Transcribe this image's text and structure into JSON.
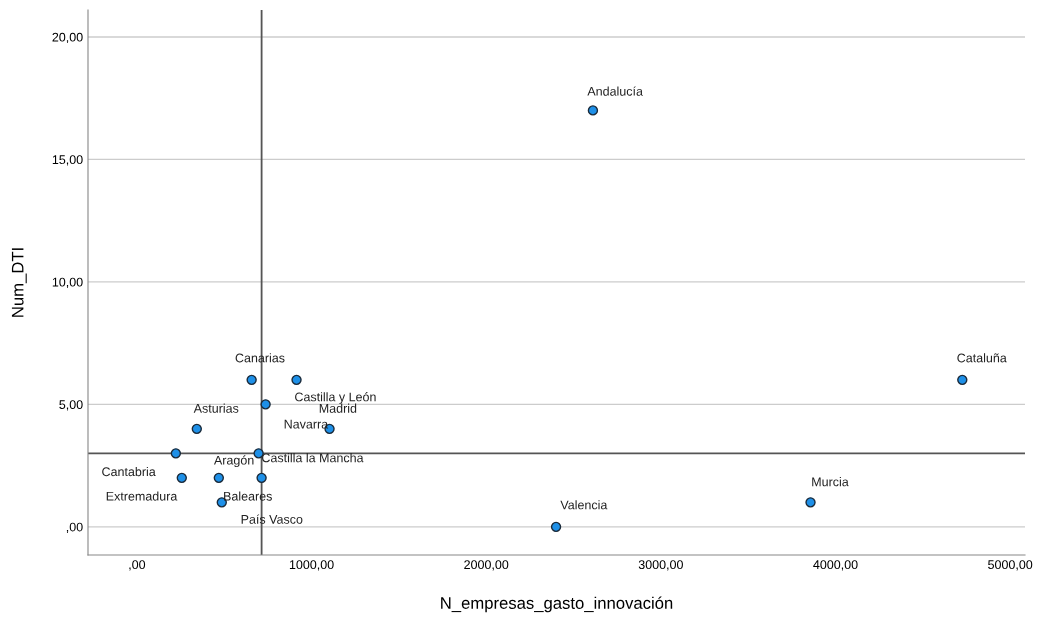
{
  "chart_data": {
    "type": "scatter",
    "xlabel": "N_empresas_gasto_innovación",
    "ylabel": "Num_DTI",
    "x": [
      2611,
      4726,
      3857,
      2400,
      657,
      914,
      737,
      1103,
      343,
      223,
      697,
      257,
      469,
      714,
      486
    ],
    "values": [
      17,
      6,
      1,
      0,
      6,
      6,
      5,
      4,
      4,
      3,
      3,
      2,
      2,
      2,
      1
    ],
    "color": "#1e90e8",
    "marker": "circle",
    "annotations": [
      {
        "text": "Andalucía",
        "x": 2611,
        "y": 17
      },
      {
        "text": "Cataluña",
        "x": 4726,
        "y": 6
      },
      {
        "text": "Murcia",
        "x": 3857,
        "y": 1
      },
      {
        "text": "Valencia",
        "x": 2400,
        "y": 0
      },
      {
        "text": "Canarias",
        "x": 657,
        "y": 6
      },
      {
        "text": "Castilla y León",
        "x": 914,
        "y": 6
      },
      {
        "text": "Navarra",
        "x": 737,
        "y": 5
      },
      {
        "text": "Madrid",
        "x": 1103,
        "y": 4
      },
      {
        "text": "Asturias",
        "x": 343,
        "y": 4
      },
      {
        "text": "Cantabria",
        "x": 223,
        "y": 3
      },
      {
        "text": "Castilla la Mancha",
        "x": 697,
        "y": 3
      },
      {
        "text": "Extremadura",
        "x": 257,
        "y": 2
      },
      {
        "text": "Aragón",
        "x": 469,
        "y": 2
      },
      {
        "text": "Baleares",
        "x": 714,
        "y": 2
      },
      {
        "text": "País Vasco",
        "x": 486,
        "y": 1
      }
    ],
    "xlim": [
      -280,
      5085
    ],
    "xticks": [
      {
        "value": 0,
        "label": ",00"
      },
      {
        "value": 1000,
        "label": "1000,00"
      },
      {
        "value": 2000,
        "label": "2000,00"
      },
      {
        "value": 3000,
        "label": "3000,00"
      },
      {
        "value": 4000,
        "label": "4000,00"
      },
      {
        "value": 5000,
        "label": "5000,00"
      }
    ],
    "ylim": [
      -1.15,
      21.1
    ],
    "yticks": [
      {
        "value": 0,
        "label": ",00"
      },
      {
        "value": 5,
        "label": "5,00"
      },
      {
        "value": 10,
        "label": "10,00"
      },
      {
        "value": 15,
        "label": "15,00"
      },
      {
        "value": 20,
        "label": "20,00"
      }
    ],
    "grid": "y",
    "ref_lines": [
      {
        "axis": "x",
        "value": 714,
        "color": "#555555"
      },
      {
        "axis": "y",
        "value": 3,
        "color": "#555555"
      }
    ]
  }
}
